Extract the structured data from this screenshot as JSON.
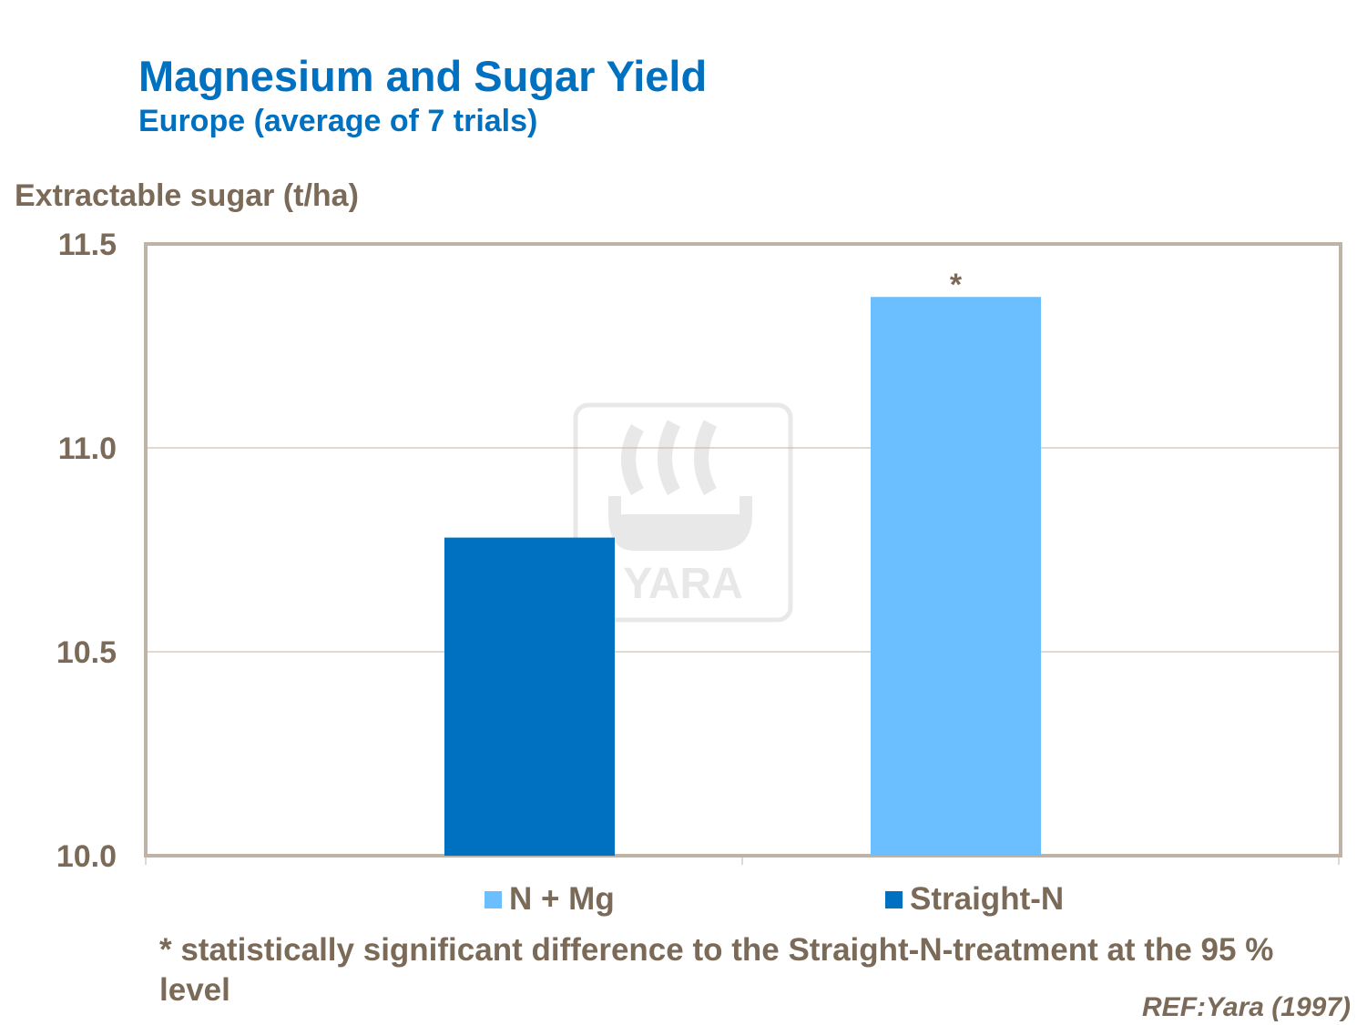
{
  "chart_data": {
    "type": "bar",
    "title": "Magnesium and Sugar Yield",
    "subtitle": "Europe (average of 7 trials)",
    "ylabel": "Extractable sugar (t/ha)",
    "ylim": [
      10.0,
      11.5
    ],
    "yticks": [
      "10.0",
      "10.5",
      "11.0",
      "11.5"
    ],
    "grid": true,
    "legend_placement": "bottom",
    "series": [
      {
        "name": "Straight-N",
        "value": 10.78,
        "color": "#0070c0",
        "annotation": ""
      },
      {
        "name": "N + Mg",
        "value": 11.37,
        "color": "#6bbfff",
        "annotation": "*"
      }
    ],
    "legend": [
      {
        "label": "N + Mg",
        "color": "#6bbfff"
      },
      {
        "label": "Straight-N",
        "color": "#0070c0"
      }
    ],
    "footnote": "* statistically significant difference to the Straight-N-treatment at the 95 % level",
    "reference": "REF:Yara (1997)"
  },
  "watermark": {
    "text": "YARA"
  }
}
